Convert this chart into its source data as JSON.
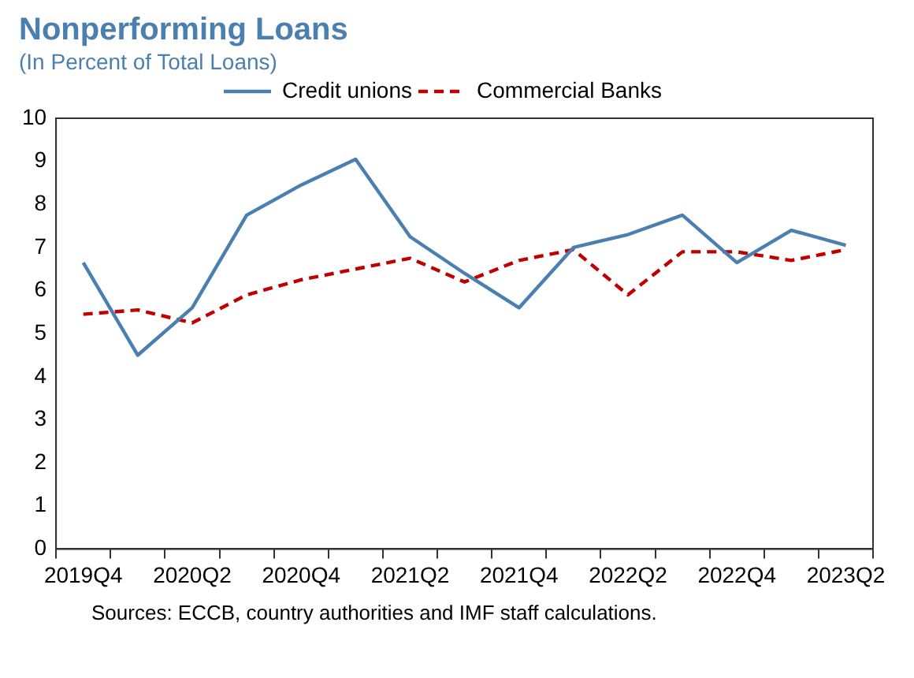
{
  "chart_data": {
    "type": "line",
    "title": "Nonperforming Loans",
    "subtitle": "(In Percent of Total Loans)",
    "categories": [
      "2019Q4",
      null,
      "2020Q2",
      null,
      "2020Q4",
      null,
      "2021Q2",
      null,
      "2021Q4",
      null,
      "2022Q2",
      null,
      "2022Q4",
      null,
      "2023Q2"
    ],
    "series": [
      {
        "name": "Credit unions",
        "color": "#4a7fb0",
        "line_style": "solid",
        "values": [
          6.65,
          4.5,
          5.6,
          7.75,
          8.45,
          9.05,
          7.25,
          6.4,
          5.6,
          7.0,
          7.3,
          7.75,
          6.65,
          7.4,
          7.05
        ]
      },
      {
        "name": "Commercial Banks",
        "color": "#c00000",
        "line_style": "dashed",
        "values": [
          5.45,
          5.55,
          5.25,
          5.9,
          6.25,
          6.5,
          6.75,
          6.2,
          6.7,
          6.95,
          5.9,
          6.9,
          6.9,
          6.7,
          6.95
        ]
      }
    ],
    "ylim": [
      0,
      10
    ],
    "yticks": [
      0,
      1,
      2,
      3,
      4,
      5,
      6,
      7,
      8,
      9,
      10
    ],
    "grid": false,
    "legend": "top",
    "marker": "none",
    "annotations": [
      "Sources: ECCB, country authorities and IMF staff calculations."
    ]
  }
}
